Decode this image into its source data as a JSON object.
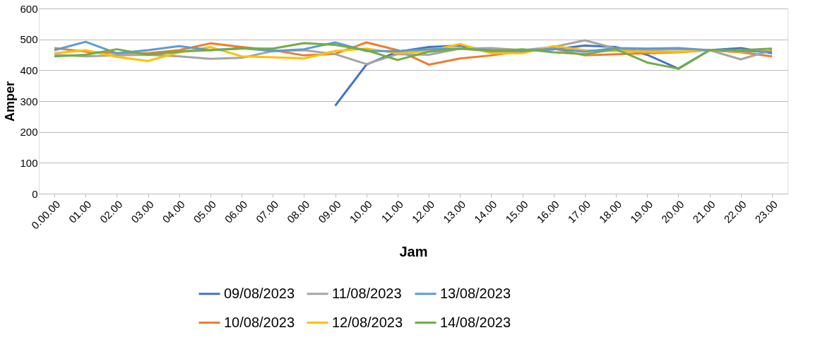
{
  "chart_data": {
    "type": "line",
    "xlabel": "Jam",
    "ylabel": "Amper",
    "categories": [
      "0.00.00",
      "01.00",
      "02.00",
      "03.00",
      "04.00",
      "05.00",
      "06.00",
      "07.00",
      "08.00",
      "09.00",
      "10.00",
      "11.00",
      "12.00",
      "13.00",
      "14.00",
      "15.00",
      "16.00",
      "17.00",
      "18.00",
      "19.00",
      "20.00",
      "21.00",
      "22.00",
      "23.00"
    ],
    "ylim": [
      0,
      600
    ],
    "yticks": [
      0,
      100,
      200,
      300,
      400,
      500,
      600
    ],
    "grid": "y",
    "legend": "bottom",
    "marker": "none",
    "line_style": "solid",
    "series": [
      {
        "name": "09/08/2023",
        "color": "#4472c4",
        "values": [
          null,
          null,
          null,
          null,
          null,
          null,
          null,
          null,
          null,
          285,
          418,
          460,
          475,
          480,
          462,
          462,
          468,
          480,
          475,
          450,
          405,
          465,
          472,
          455
        ]
      },
      {
        "name": "10/08/2023",
        "color": "#ed7d31",
        "values": [
          472,
          460,
          455,
          455,
          465,
          487,
          475,
          465,
          448,
          453,
          490,
          465,
          418,
          438,
          448,
          462,
          470,
          448,
          452,
          455,
          458,
          465,
          458,
          445
        ]
      },
      {
        "name": "11/08/2023",
        "color": "#a5a5a5",
        "values": [
          450,
          445,
          448,
          450,
          445,
          437,
          440,
          462,
          465,
          452,
          420,
          452,
          450,
          470,
          472,
          465,
          475,
          497,
          470,
          465,
          468,
          465,
          435,
          465
        ]
      },
      {
        "name": "12/08/2023",
        "color": "#ffc000",
        "values": [
          455,
          465,
          443,
          430,
          458,
          475,
          445,
          442,
          438,
          462,
          470,
          455,
          462,
          485,
          455,
          455,
          478,
          465,
          462,
          460,
          460,
          465,
          460,
          462
        ]
      },
      {
        "name": "13/08/2023",
        "color": "#5b9bd5",
        "values": [
          465,
          492,
          455,
          465,
          478,
          465,
          472,
          462,
          468,
          490,
          462,
          462,
          468,
          470,
          465,
          462,
          470,
          460,
          472,
          470,
          472,
          465,
          462,
          460
        ]
      },
      {
        "name": "14/08/2023",
        "color": "#70ad47",
        "values": [
          445,
          450,
          468,
          450,
          460,
          465,
          470,
          470,
          488,
          482,
          465,
          433,
          460,
          470,
          462,
          468,
          458,
          452,
          468,
          425,
          405,
          465,
          465,
          470
        ]
      }
    ]
  }
}
